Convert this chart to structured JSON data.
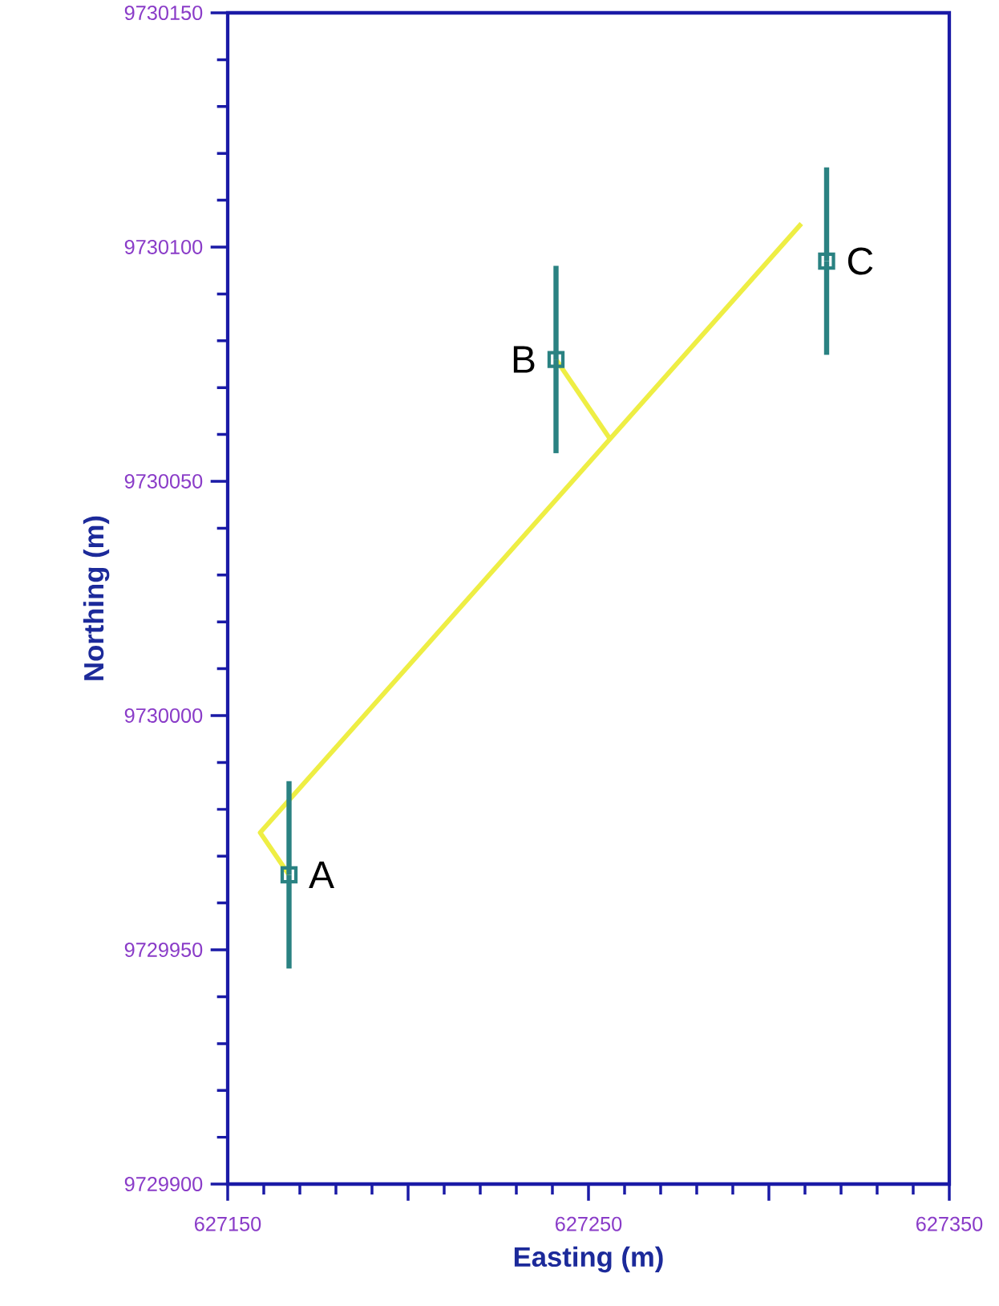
{
  "chart_data": {
    "type": "scatter",
    "xlabel": "Easting (m)",
    "ylabel": "Northing (m)",
    "xlim": [
      627150,
      627350
    ],
    "ylim": [
      9729900,
      9730150
    ],
    "xticks": [
      627150,
      {
        "value": 627200,
        "label": null
      },
      627250,
      {
        "value": 627300,
        "label": null
      },
      627350
    ],
    "yticks": [
      9729900,
      9729950,
      9730000,
      9730050,
      9730100,
      9730150
    ],
    "series": [
      {
        "type": "line",
        "color": "#eeee44",
        "x": [
          627167,
          627159,
          627309
        ],
        "values": [
          9729966,
          9729975,
          9730105
        ],
        "marker": "none"
      },
      {
        "type": "line",
        "color": "#eeee44",
        "x": [
          627241,
          627256
        ],
        "values": [
          9730076,
          9730059
        ],
        "marker": "none"
      },
      {
        "color": "#2a8282",
        "x": [
          627167,
          627241,
          627316
        ],
        "values": [
          9729966,
          9730076,
          9730097
        ],
        "errors": [
          20,
          20,
          20
        ],
        "marker": "square"
      }
    ],
    "annotations": [
      {
        "text": "A",
        "x": 627167,
        "y": 9729966
      },
      {
        "text": "B",
        "x": 627241,
        "y": 9730076
      },
      {
        "text": "C",
        "x": 627316,
        "y": 9730097
      }
    ]
  }
}
